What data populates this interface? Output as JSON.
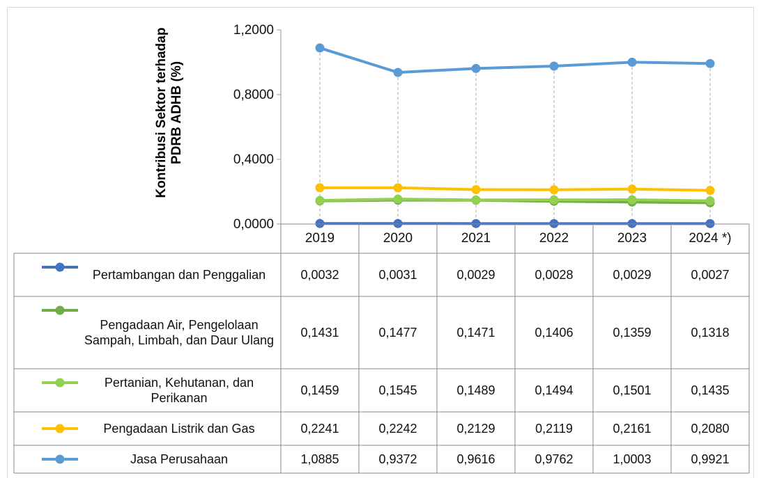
{
  "chart_data": {
    "type": "line",
    "y_label": "Kontribusi Sektor terhadap PDRB ADHB (%)",
    "categories": [
      "2019",
      "2020",
      "2021",
      "2022",
      "2023",
      "2024 *)"
    ],
    "ylim": [
      0,
      1.2
    ],
    "yticks": [
      {
        "value": 0,
        "label": "0,0000"
      },
      {
        "value": 0.4,
        "label": "0,4000"
      },
      {
        "value": 0.8,
        "label": "0,8000"
      },
      {
        "value": 1.2,
        "label": "1,2000"
      }
    ],
    "series": [
      {
        "name": "Pertambangan dan Penggalian",
        "color": "#4472c4",
        "values": [
          0.0032,
          0.0031,
          0.0029,
          0.0028,
          0.0029,
          0.0027
        ],
        "value_labels": [
          "0,0032",
          "0,0031",
          "0,0029",
          "0,0028",
          "0,0029",
          "0,0027"
        ]
      },
      {
        "name": "Pengadaan Air, Pengelolaan Sampah, Limbah, dan Daur Ulang",
        "color": "#70ad47",
        "values": [
          0.1431,
          0.1477,
          0.1471,
          0.1406,
          0.1359,
          0.1318
        ],
        "value_labels": [
          "0,1431",
          "0,1477",
          "0,1471",
          "0,1406",
          "0,1359",
          "0,1318"
        ]
      },
      {
        "name": "Pertanian, Kehutanan, dan Perikanan",
        "color": "#92d050",
        "values": [
          0.1459,
          0.1545,
          0.1489,
          0.1494,
          0.1501,
          0.1435
        ],
        "value_labels": [
          "0,1459",
          "0,1545",
          "0,1489",
          "0,1494",
          "0,1501",
          "0,1435"
        ]
      },
      {
        "name": "Pengadaan Listrik dan Gas",
        "color": "#ffc000",
        "values": [
          0.2241,
          0.2242,
          0.2129,
          0.2119,
          0.2161,
          0.208
        ],
        "value_labels": [
          "0,2241",
          "0,2242",
          "0,2129",
          "0,2119",
          "0,2161",
          "0,2080"
        ]
      },
      {
        "name": "Jasa Perusahaan",
        "color": "#5b9bd5",
        "values": [
          1.0885,
          0.9372,
          0.9616,
          0.9762,
          1.0003,
          0.9921
        ],
        "value_labels": [
          "1,0885",
          "0,9372",
          "0,9616",
          "0,9762",
          "1,0003",
          "0,9921"
        ]
      }
    ]
  }
}
